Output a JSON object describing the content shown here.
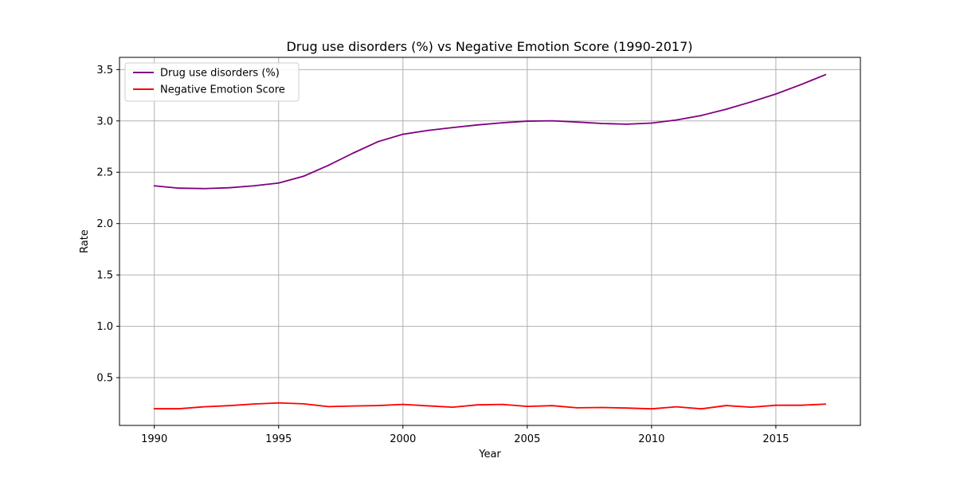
{
  "chart_data": {
    "type": "line",
    "title": "Drug use disorders (%) vs Negative Emotion Score (1990-2017)",
    "xlabel": "Year",
    "ylabel": "Rate",
    "xlim": [
      1988.6,
      2018.4
    ],
    "ylim": [
      0.0346,
      3.619
    ],
    "xticks": [
      1990,
      1995,
      2000,
      2005,
      2010,
      2015
    ],
    "yticks": [
      0.5,
      1.0,
      1.5,
      2.0,
      2.5,
      3.0,
      3.5
    ],
    "xtick_labels": [
      "1990",
      "1995",
      "2000",
      "2005",
      "2010",
      "2015"
    ],
    "ytick_labels": [
      "0.5",
      "1.0",
      "1.5",
      "2.0",
      "2.5",
      "3.0",
      "3.5"
    ],
    "grid": true,
    "legend_position": "upper-left",
    "x": [
      1990,
      1991,
      1992,
      1993,
      1994,
      1995,
      1996,
      1997,
      1998,
      1999,
      2000,
      2001,
      2002,
      2003,
      2004,
      2005,
      2006,
      2007,
      2008,
      2009,
      2010,
      2011,
      2012,
      2013,
      2014,
      2015,
      2016,
      2017
    ],
    "series": [
      {
        "name": "Drug use disorders (%)",
        "color": "#800080",
        "values": [
          2.368,
          2.345,
          2.341,
          2.349,
          2.368,
          2.395,
          2.461,
          2.567,
          2.687,
          2.798,
          2.87,
          2.907,
          2.935,
          2.961,
          2.982,
          2.998,
          3.001,
          2.989,
          2.975,
          2.968,
          2.979,
          3.009,
          3.053,
          3.114,
          3.185,
          3.262,
          3.353,
          3.451
        ]
      },
      {
        "name": "Negative Emotion Score",
        "color": "#ff0000",
        "values": [
          0.197,
          0.197,
          0.216,
          0.227,
          0.243,
          0.254,
          0.245,
          0.218,
          0.224,
          0.228,
          0.239,
          0.225,
          0.212,
          0.235,
          0.239,
          0.22,
          0.227,
          0.206,
          0.209,
          0.204,
          0.196,
          0.216,
          0.196,
          0.228,
          0.212,
          0.231,
          0.231,
          0.242
        ]
      }
    ]
  }
}
